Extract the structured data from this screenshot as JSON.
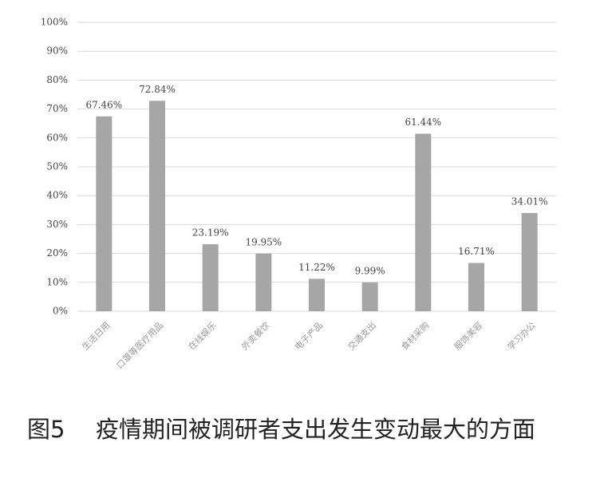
{
  "chart_data": {
    "type": "bar",
    "figure_label": "图5",
    "title": "疫情期间被调研者支出发生变动最大的方面",
    "categories": [
      "生活日用",
      "口罩等医疗用品",
      "在线娱乐",
      "外卖餐饮",
      "电子产品",
      "交通支出",
      "食材采购",
      "服饰美容",
      "学习办公"
    ],
    "values": [
      67.46,
      72.84,
      23.19,
      19.95,
      11.22,
      9.99,
      61.44,
      16.71,
      34.01
    ],
    "value_labels": [
      "67.46%",
      "72.84%",
      "23.19%",
      "19.95%",
      "11.22%",
      "9.99%",
      "61.44%",
      "16.71%",
      "34.01%"
    ],
    "color": "#a6a6a6",
    "ylim": [
      0,
      100
    ],
    "yticks": [
      {
        "value": 0,
        "label": "0%"
      },
      {
        "value": 10,
        "label": "10%"
      },
      {
        "value": 20,
        "label": "20%"
      },
      {
        "value": 30,
        "label": "30%"
      },
      {
        "value": 40,
        "label": "40%"
      },
      {
        "value": 50,
        "label": "50%"
      },
      {
        "value": 60,
        "label": "60%"
      },
      {
        "value": 70,
        "label": "70%"
      },
      {
        "value": 80,
        "label": "80%"
      },
      {
        "value": 90,
        "label": "90%"
      },
      {
        "value": 100,
        "label": "100%"
      }
    ],
    "grid": true
  }
}
